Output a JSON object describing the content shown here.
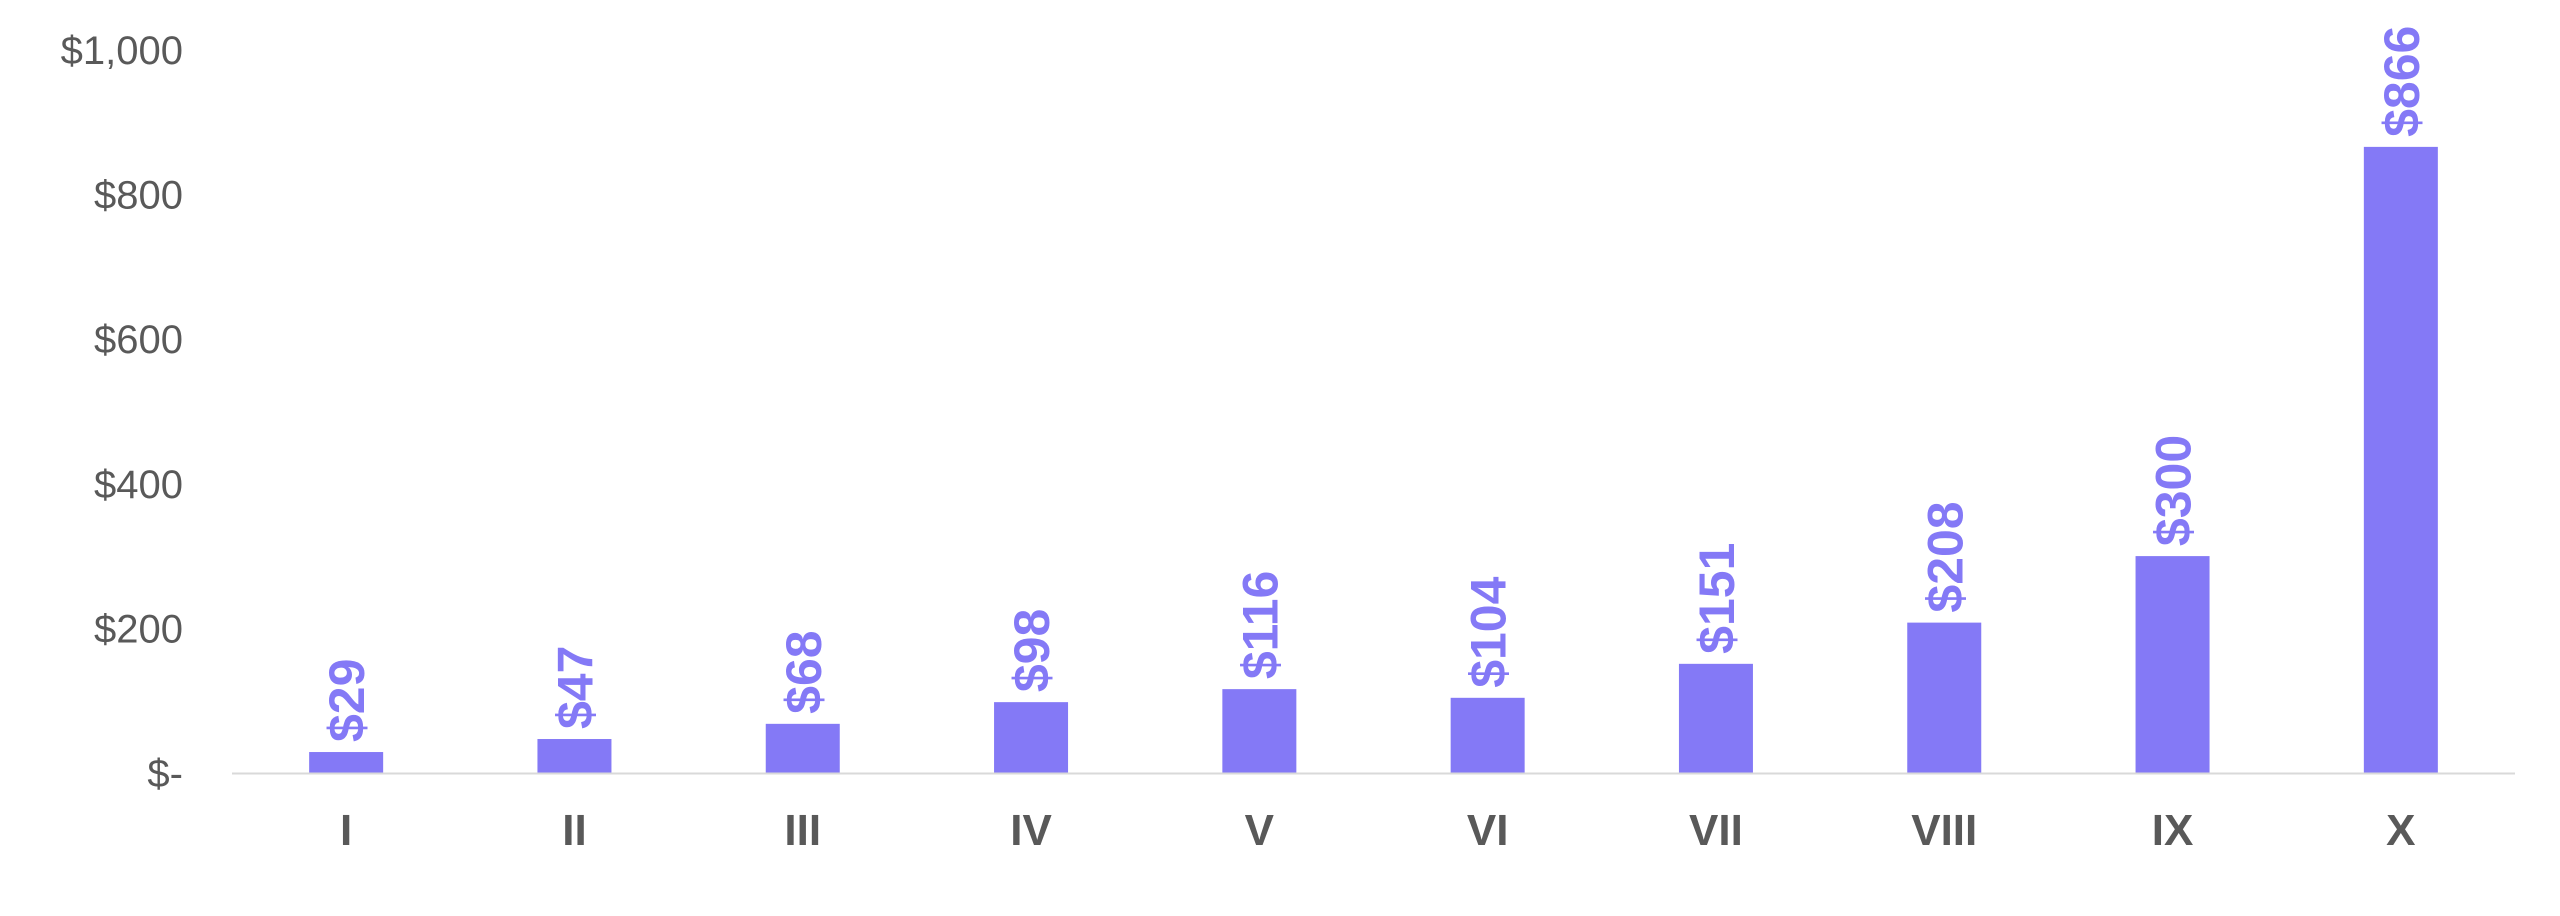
{
  "chart_data": {
    "type": "bar",
    "categories": [
      "I",
      "II",
      "III",
      "IV",
      "V",
      "VI",
      "VII",
      "VIII",
      "IX",
      "X"
    ],
    "values": [
      29,
      47,
      68,
      98,
      116,
      104,
      151,
      208,
      300,
      866
    ],
    "data_labels": [
      "$29",
      "$47",
      "$68",
      "$98",
      "$116",
      "$104",
      "$151",
      "$208",
      "$300",
      "$866"
    ],
    "y_ticks": [
      0,
      200,
      400,
      600,
      800,
      1000
    ],
    "y_tick_labels": [
      "$-",
      "$200",
      "$400",
      "$600",
      "$800",
      "$1,000"
    ],
    "ylim": [
      0,
      1000
    ],
    "title": "",
    "xlabel": "",
    "ylabel": "",
    "grid": false,
    "legend": "none",
    "data_label_orientation": "vertical",
    "colors": {
      "bar": "#8479F6",
      "data_label": "#8479F6",
      "axis_line": "#D9D9D9",
      "tick_text": "#595959"
    }
  }
}
